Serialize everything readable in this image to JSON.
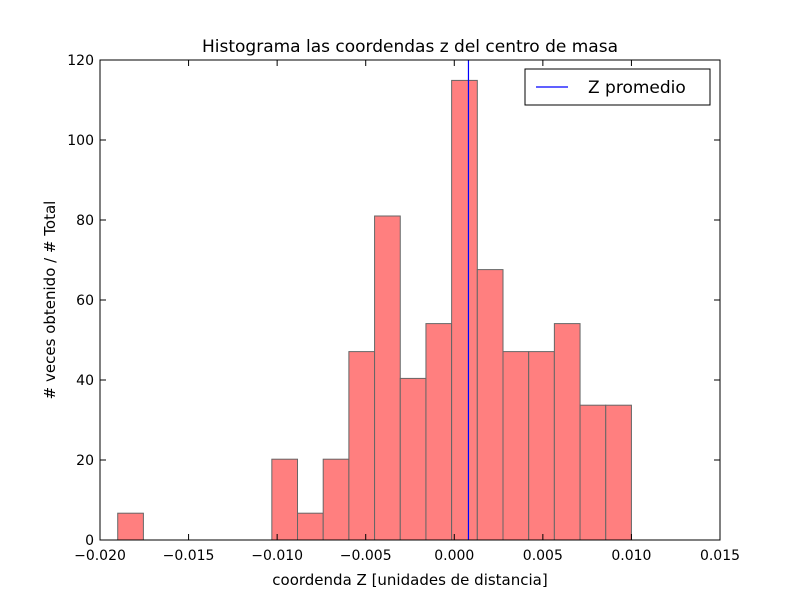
{
  "chart_data": {
    "type": "bar",
    "title": "Histograma las coordendas z del centro de masa",
    "xlabel": "coordenda Z [unidades de distancia]",
    "ylabel": "# veces obtenido / # Total",
    "xlim": [
      -0.02,
      0.015
    ],
    "ylim": [
      0,
      120
    ],
    "xticks": [
      -0.02,
      -0.015,
      -0.01,
      -0.005,
      0.0,
      0.005,
      0.01,
      0.015
    ],
    "xtick_labels": [
      "−0.020",
      "−0.015",
      "−0.010",
      "−0.005",
      "0.000",
      "0.005",
      "0.010",
      "0.015"
    ],
    "yticks": [
      0,
      20,
      40,
      60,
      80,
      100,
      120
    ],
    "ytick_labels": [
      "0",
      "20",
      "40",
      "60",
      "80",
      "100",
      "120"
    ],
    "bins": [
      [
        -0.019,
        -0.01755,
        6.7
      ],
      [
        -0.01755,
        -0.0161,
        0
      ],
      [
        -0.0161,
        -0.01465,
        0
      ],
      [
        -0.01465,
        -0.0132,
        0
      ],
      [
        -0.0132,
        -0.01175,
        0
      ],
      [
        -0.01175,
        -0.0103,
        0
      ],
      [
        -0.0103,
        -0.00885,
        20.2
      ],
      [
        -0.00885,
        -0.0074,
        6.7
      ],
      [
        -0.0074,
        -0.00595,
        20.2
      ],
      [
        -0.00595,
        -0.0045,
        47.1
      ],
      [
        -0.0045,
        -0.00305,
        81.0
      ],
      [
        -0.00305,
        -0.0016,
        40.4
      ],
      [
        -0.0016,
        -0.00015,
        54.1
      ],
      [
        -0.00015,
        0.0013,
        114.9
      ],
      [
        0.0013,
        0.00275,
        67.6
      ],
      [
        0.00275,
        0.0042,
        47.1
      ],
      [
        0.0042,
        0.00565,
        47.1
      ],
      [
        0.00565,
        0.0071,
        54.1
      ],
      [
        0.0071,
        0.00855,
        33.7
      ],
      [
        0.00855,
        0.01,
        33.7
      ]
    ],
    "bar_color": "#ff7f7f",
    "bar_edge_color": "#666666",
    "mean_line": {
      "name": "Z promedio",
      "x": 0.0008,
      "color": "#0000ff"
    },
    "legend": {
      "placement": "top-right",
      "label": "Z promedio"
    },
    "grid": false
  }
}
